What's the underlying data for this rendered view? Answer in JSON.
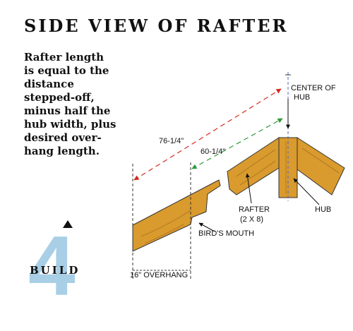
{
  "title": "SIDE VIEW OF RAFTER",
  "description": "Rafter length\nis equal to the\ndistance\nstepped-off,\nminus half the\nhub width, plus\ndesired over-\nhang length.",
  "labels": {
    "center_of_hub": [
      "CENTER OF",
      "HUB"
    ],
    "total_length": "76-1/4\"",
    "stepped_length": "60-1/4\"",
    "rafter": [
      "RAFTER",
      "(2 X 8)"
    ],
    "hub": "HUB",
    "birds_mouth": "BIRD'S MOUTH",
    "overhang": "16\" OVERHANG"
  },
  "step": {
    "number": "4",
    "word": "BUILD"
  },
  "colors": {
    "wood": "#d99a2e",
    "wood_grain": "#8a5a14",
    "red_dimension": "#d42a1f",
    "green_dimension": "#2e9a3a",
    "center_line": "#5566bb",
    "step_number": "#a8cfe6"
  }
}
